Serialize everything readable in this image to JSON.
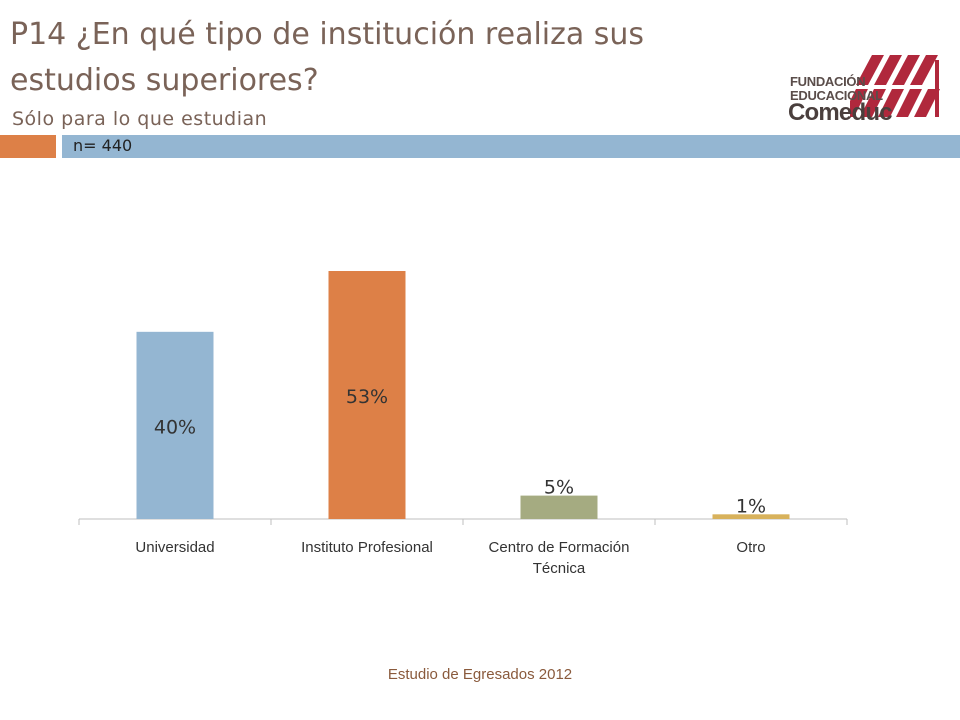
{
  "slide": {
    "title": "P14 ¿En qué tipo de institución realiza sus estudios superiores?",
    "subtitle": "Sólo para lo que estudian",
    "sample": "n= 440",
    "footer": "Estudio de Egresados 2012"
  },
  "logo": {
    "line1": "FUNDACIÓN",
    "line2": "EDUCACIONAL",
    "line3": "Comeduc",
    "colors": {
      "stripes": "#b0283c",
      "text": "#4a3f3d"
    }
  },
  "colors": {
    "title": "#7a6358",
    "orange_band": "#dd8047",
    "blue_band": "#94b6d2"
  },
  "chart_data": {
    "type": "bar",
    "categories": [
      "Universidad",
      "Instituto Profesional",
      "Centro de Formación Técnica",
      "Otro"
    ],
    "category_lines": [
      [
        "Universidad"
      ],
      [
        "Instituto Profesional"
      ],
      [
        "Centro de Formación",
        "Técnica"
      ],
      [
        "Otro"
      ]
    ],
    "values": [
      40,
      53,
      5,
      1
    ],
    "data_labels": [
      "40%",
      "53%",
      "5%",
      "1%"
    ],
    "colors": [
      "#94b6d2",
      "#dd8047",
      "#a5ab81",
      "#d8b25c"
    ],
    "ylim": [
      0,
      60
    ],
    "grid": false,
    "legend": "none"
  }
}
